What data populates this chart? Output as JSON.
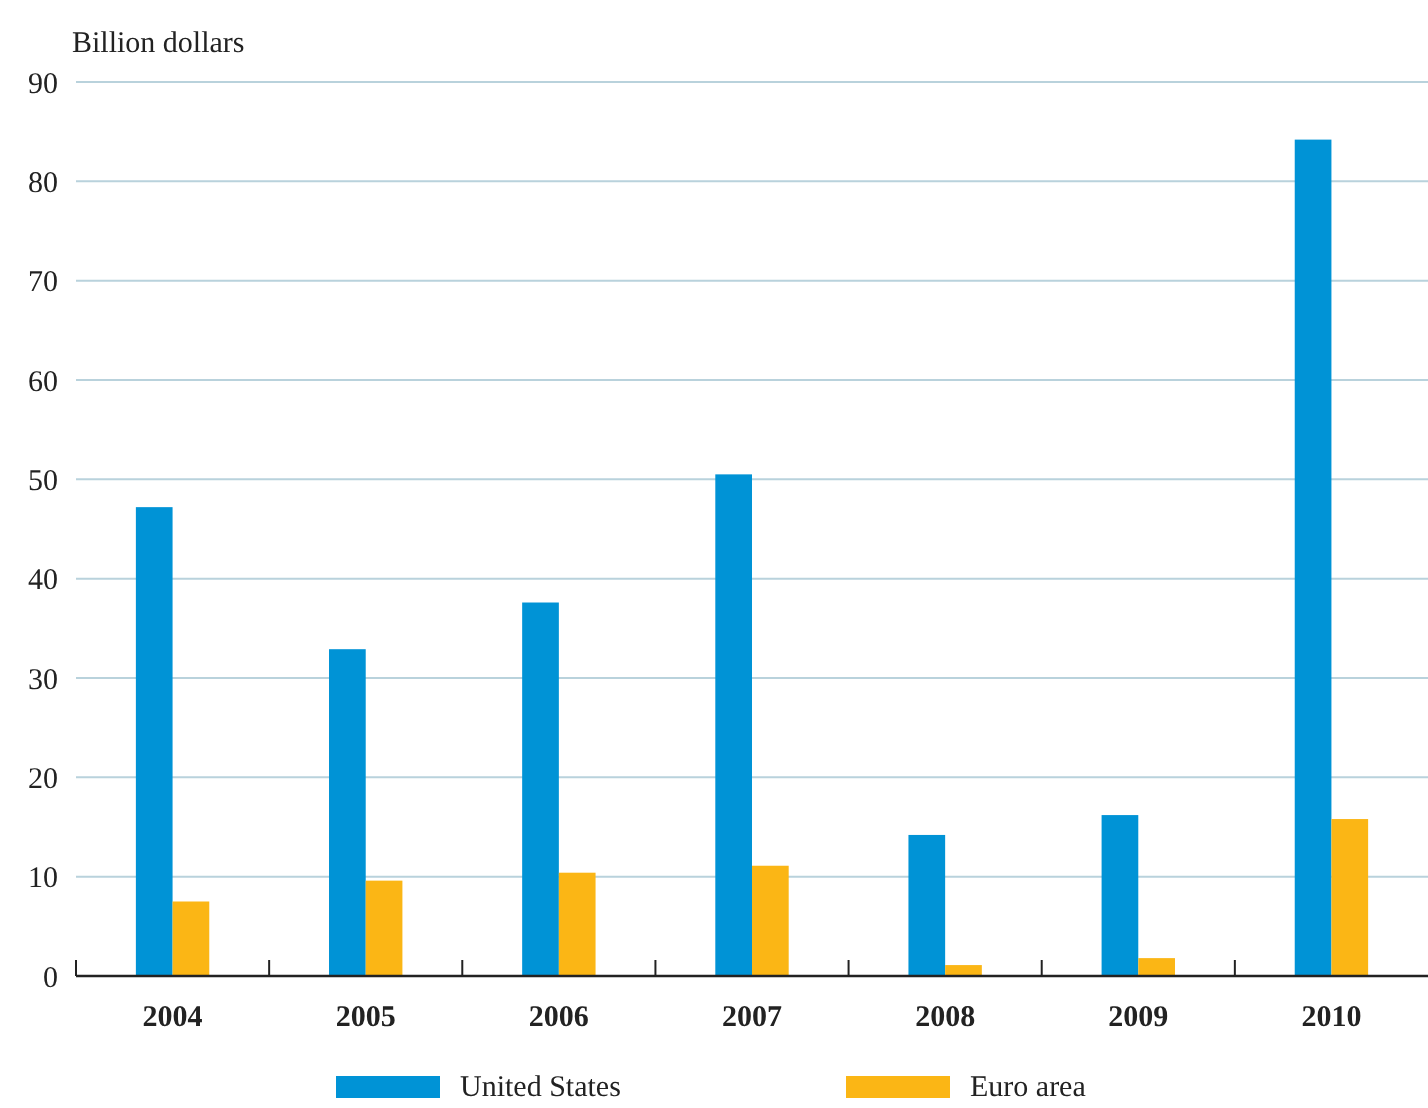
{
  "chart_data": {
    "type": "bar",
    "ylabel": "Billion dollars",
    "categories": [
      "2004",
      "2005",
      "2006",
      "2007",
      "2008",
      "2009",
      "2010"
    ],
    "series": [
      {
        "name": "United States",
        "color": "#0093d6",
        "values": [
          47.2,
          32.9,
          37.6,
          50.5,
          14.2,
          16.2,
          84.2
        ]
      },
      {
        "name": "Euro area",
        "color": "#fbb615",
        "values": [
          7.5,
          9.6,
          10.4,
          11.1,
          1.1,
          1.8,
          15.8
        ]
      }
    ],
    "ylim": [
      0,
      90
    ],
    "yticks": [
      0,
      10,
      20,
      30,
      40,
      50,
      60,
      70,
      80,
      90
    ],
    "grid": "y",
    "legend": "bottom"
  }
}
